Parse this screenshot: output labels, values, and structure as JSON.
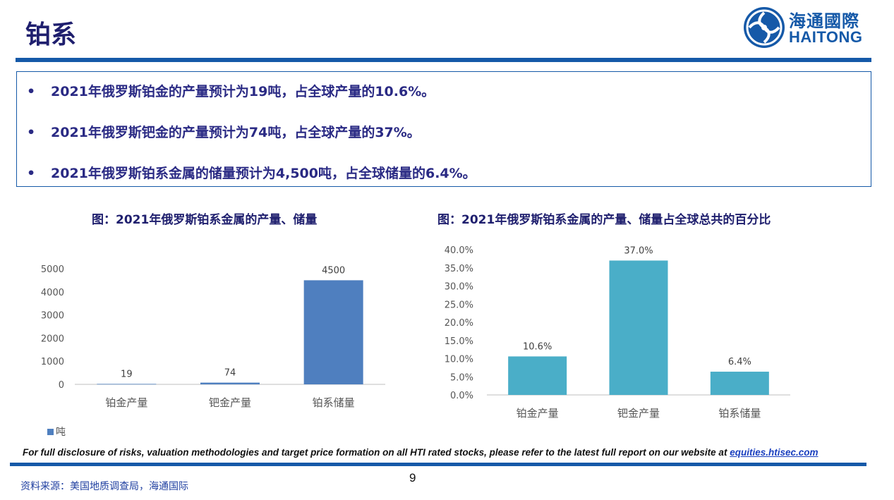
{
  "header": {
    "title": "铂系",
    "logo": {
      "cn": "海通國際",
      "en": "HAITONG"
    }
  },
  "bullets": [
    "2021年俄罗斯铂金的产量预计为19吨，占全球产量的10.6%。",
    "2021年俄罗斯钯金的产量预计为74吨，占全球产量的37%。",
    "2021年俄罗斯铂系金属的储量预计为4,500吨，占全球储量的6.4%。"
  ],
  "bullet_symbol": "•",
  "chart_data": [
    {
      "type": "bar",
      "title": "图：2021年俄罗斯铂系金属的产量、储量",
      "categories": [
        "铂金产量",
        "钯金产量",
        "铂系储量"
      ],
      "values": [
        19,
        74,
        4500
      ],
      "data_labels": [
        "19",
        "74",
        "4500"
      ],
      "ylim": [
        0,
        5000
      ],
      "yticks": [
        "0",
        "1000",
        "2000",
        "3000",
        "4000",
        "5000"
      ],
      "legend": "吨",
      "legend_position": "bottom-left",
      "color": "#4f7fbf"
    },
    {
      "type": "bar",
      "title": "图：2021年俄罗斯铂系金属的产量、储量占全球总共的百分比",
      "categories": [
        "铂金产量",
        "钯金产量",
        "铂系储量"
      ],
      "values": [
        10.6,
        37.0,
        6.4
      ],
      "data_labels": [
        "10.6%",
        "37.0%",
        "6.4%"
      ],
      "ylim": [
        0,
        40
      ],
      "yticks": [
        "0.0%",
        "5.0%",
        "10.0%",
        "15.0%",
        "20.0%",
        "25.0%",
        "30.0%",
        "35.0%",
        "40.0%"
      ],
      "color": "#4aaec8"
    }
  ],
  "footer": {
    "disclosure": "For full disclosure of risks, valuation methodologies and target price formation on all HTI rated stocks, please refer to the latest full report on our website at ",
    "link": "equities.htisec.com",
    "page": "9",
    "source": "资料来源：美国地质调查局，海通国际"
  },
  "colors": {
    "brand": "#1559a8",
    "title": "#1f1f6e",
    "bullet": "#2a2a84"
  }
}
